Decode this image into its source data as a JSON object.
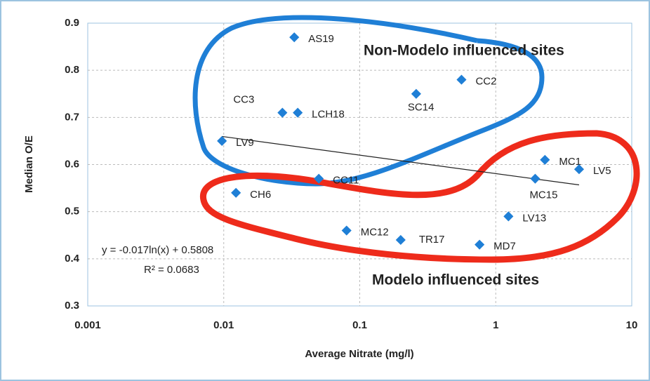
{
  "chart_data": {
    "type": "scatter",
    "x_label": "Average Nitrate (mg/l)",
    "y_label": "Median O/E",
    "xscale": "log",
    "grid": true,
    "xlim": [
      0.001,
      10
    ],
    "xticks": [
      0.001,
      0.01,
      0.1,
      1,
      10
    ],
    "ylim": [
      0.3,
      0.9
    ],
    "yticks": [
      0.3,
      0.4,
      0.5,
      0.6,
      0.7,
      0.8,
      0.9
    ],
    "series": [
      {
        "color": "#1f7fd6",
        "labels": [
          "AS19",
          "CC2",
          "SC14",
          "CC3",
          "LCH18",
          "LV9",
          "MC1",
          "LV5",
          "MC15",
          "CC11",
          "CH6",
          "LV13",
          "MC12",
          "TR17",
          "MD7"
        ],
        "x": [
          0.033,
          0.56,
          0.26,
          0.027,
          0.035,
          0.0097,
          2.3,
          4.1,
          1.95,
          0.05,
          0.0123,
          1.24,
          0.08,
          0.2,
          0.76
        ],
        "values": [
          0.87,
          0.78,
          0.75,
          0.71,
          0.71,
          0.65,
          0.61,
          0.59,
          0.57,
          0.57,
          0.54,
          0.49,
          0.46,
          0.44,
          0.43
        ]
      }
    ],
    "trendline": {
      "slope": -0.017,
      "intercept": 0.5808,
      "equation": "y = -0.017ln(x) + 0.5808",
      "r2": "R² = 0.0683"
    },
    "annotations": [
      {
        "text": "Non-Modelo influenced sites",
        "color": "#1f6fc4"
      },
      {
        "text": "Modelo influenced sites",
        "color": "#e53a2a"
      }
    ]
  }
}
